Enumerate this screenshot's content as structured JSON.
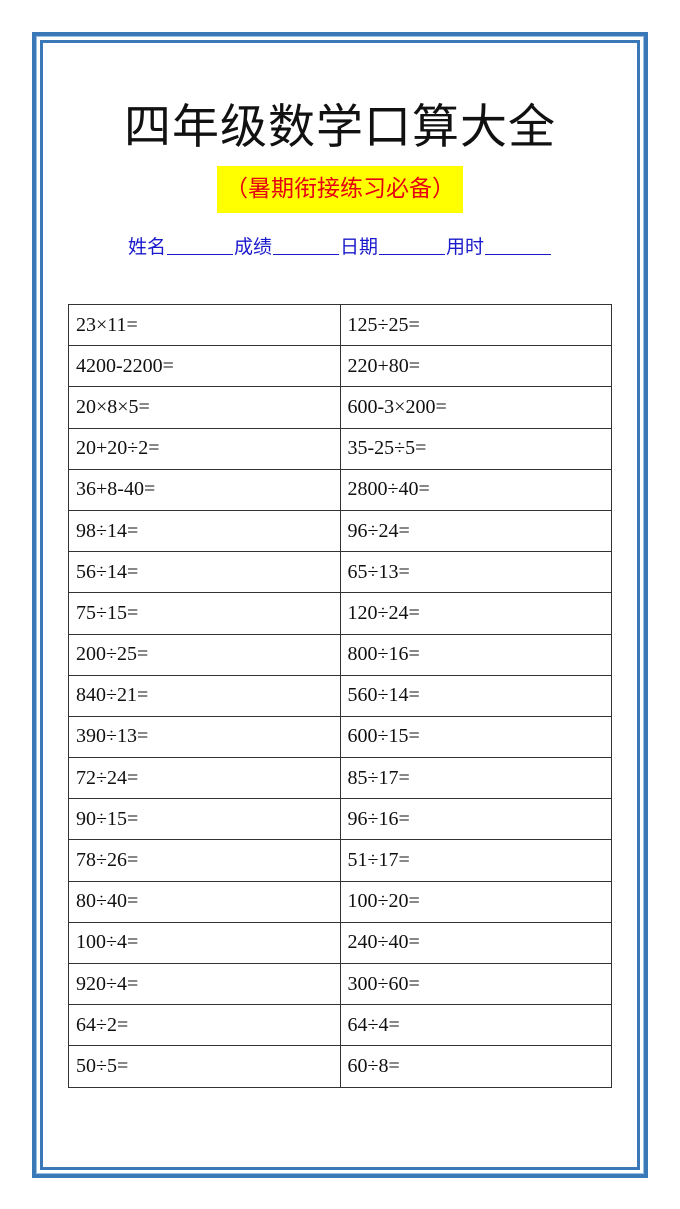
{
  "title": "四年级数学口算大全",
  "subtitle": "（暑期衔接练习必备）",
  "fields": [
    "姓名",
    "成绩",
    "日期",
    "用时"
  ],
  "colors": {
    "border": "#3a78b8",
    "subtitle_bg": "#ffff00",
    "subtitle_text": "#e60012",
    "fields_text": "#1a1acc"
  },
  "problems": [
    [
      "23×11=",
      "125÷25="
    ],
    [
      "4200-2200=",
      "220+80="
    ],
    [
      "20×8×5=",
      "600-3×200="
    ],
    [
      "20+20÷2=",
      "35-25÷5="
    ],
    [
      "36+8-40=",
      "2800÷40="
    ],
    [
      "98÷14=",
      "96÷24="
    ],
    [
      "56÷14=",
      "65÷13="
    ],
    [
      "75÷15=",
      "120÷24="
    ],
    [
      "200÷25=",
      "800÷16="
    ],
    [
      "840÷21=",
      "560÷14="
    ],
    [
      "390÷13=",
      "600÷15="
    ],
    [
      "72÷24=",
      "85÷17="
    ],
    [
      "90÷15=",
      "96÷16="
    ],
    [
      "78÷26=",
      "51÷17="
    ],
    [
      "80÷40=",
      "100÷20="
    ],
    [
      "100÷4=",
      "240÷40="
    ],
    [
      "920÷4=",
      "300÷60="
    ],
    [
      "64÷2=",
      "64÷4="
    ],
    [
      "50÷5=",
      "60÷8="
    ]
  ]
}
